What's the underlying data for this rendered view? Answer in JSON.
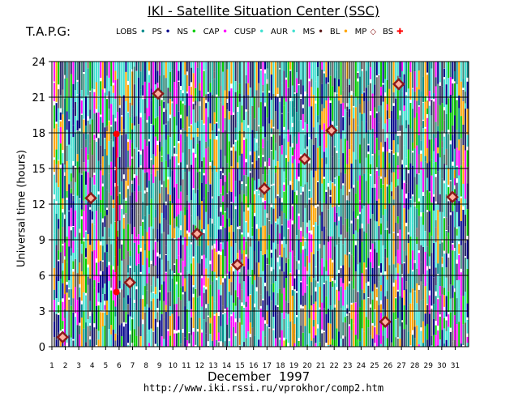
{
  "header": {
    "title": "IKI - Satellite Situation Center (SSC)",
    "tapg": "T.A.P.G:"
  },
  "legend": [
    {
      "label": "LOBS",
      "symbol": "•",
      "color": "#008b8b"
    },
    {
      "label": "PS",
      "symbol": "•",
      "color": "#00008b"
    },
    {
      "label": "NS",
      "symbol": "•",
      "color": "#00cc00"
    },
    {
      "label": "CAP",
      "symbol": "•",
      "color": "#ff00ff"
    },
    {
      "label": "CUSP",
      "symbol": "•",
      "color": "#40e0d0"
    },
    {
      "label": "AUR",
      "symbol": "•",
      "color": "#40e0d0"
    },
    {
      "label": "MS",
      "symbol": "•",
      "color": "#5a1a1a"
    },
    {
      "label": "BL",
      "symbol": "•",
      "color": "#ffa500"
    },
    {
      "label": "MP",
      "symbol": "◇",
      "color": "#8b1a1a"
    },
    {
      "label": "BS",
      "symbol": "✚",
      "color": "#ff0000"
    }
  ],
  "footer": {
    "month": "December",
    "year": "1997",
    "url": "http://www.iki.rssi.ru/vprokhor/comp2.htm"
  },
  "chart_data": {
    "type": "scatter",
    "title": "IKI - Satellite Situation Center (SSC)",
    "xlabel": "December 1997",
    "ylabel": "Universal time (hours)",
    "x_ticks": [
      "1",
      "2",
      "3",
      "4",
      "5",
      "6",
      "7",
      "8",
      "9",
      "10",
      "11",
      "12",
      "13",
      "14",
      "15",
      "16",
      "17",
      "18",
      "19",
      "20",
      "21",
      "22",
      "23",
      "24",
      "25",
      "26",
      "27",
      "28",
      "29",
      "30",
      "31"
    ],
    "y_ticks": [
      0,
      3,
      6,
      9,
      12,
      15,
      18,
      21,
      24
    ],
    "xlim": [
      1,
      32
    ],
    "ylim": [
      0,
      24
    ],
    "grid": true,
    "series": [
      {
        "name": "MP",
        "marker": "diamond",
        "color": "#8b1a1a",
        "points": [
          [
            1.8,
            0.8
          ],
          [
            3.9,
            12.5
          ],
          [
            6.8,
            5.4
          ],
          [
            8.9,
            21.3
          ],
          [
            11.8,
            9.5
          ],
          [
            14.8,
            6.9
          ],
          [
            16.8,
            13.3
          ],
          [
            19.8,
            15.8
          ],
          [
            21.8,
            18.2
          ],
          [
            25.8,
            2.1
          ],
          [
            26.8,
            22.1
          ],
          [
            30.8,
            12.6
          ]
        ]
      },
      {
        "name": "BS",
        "marker": "cross",
        "color": "#ff0000",
        "points": [
          [
            5.8,
            17.9
          ],
          [
            5.8,
            4.6
          ]
        ]
      }
    ]
  }
}
